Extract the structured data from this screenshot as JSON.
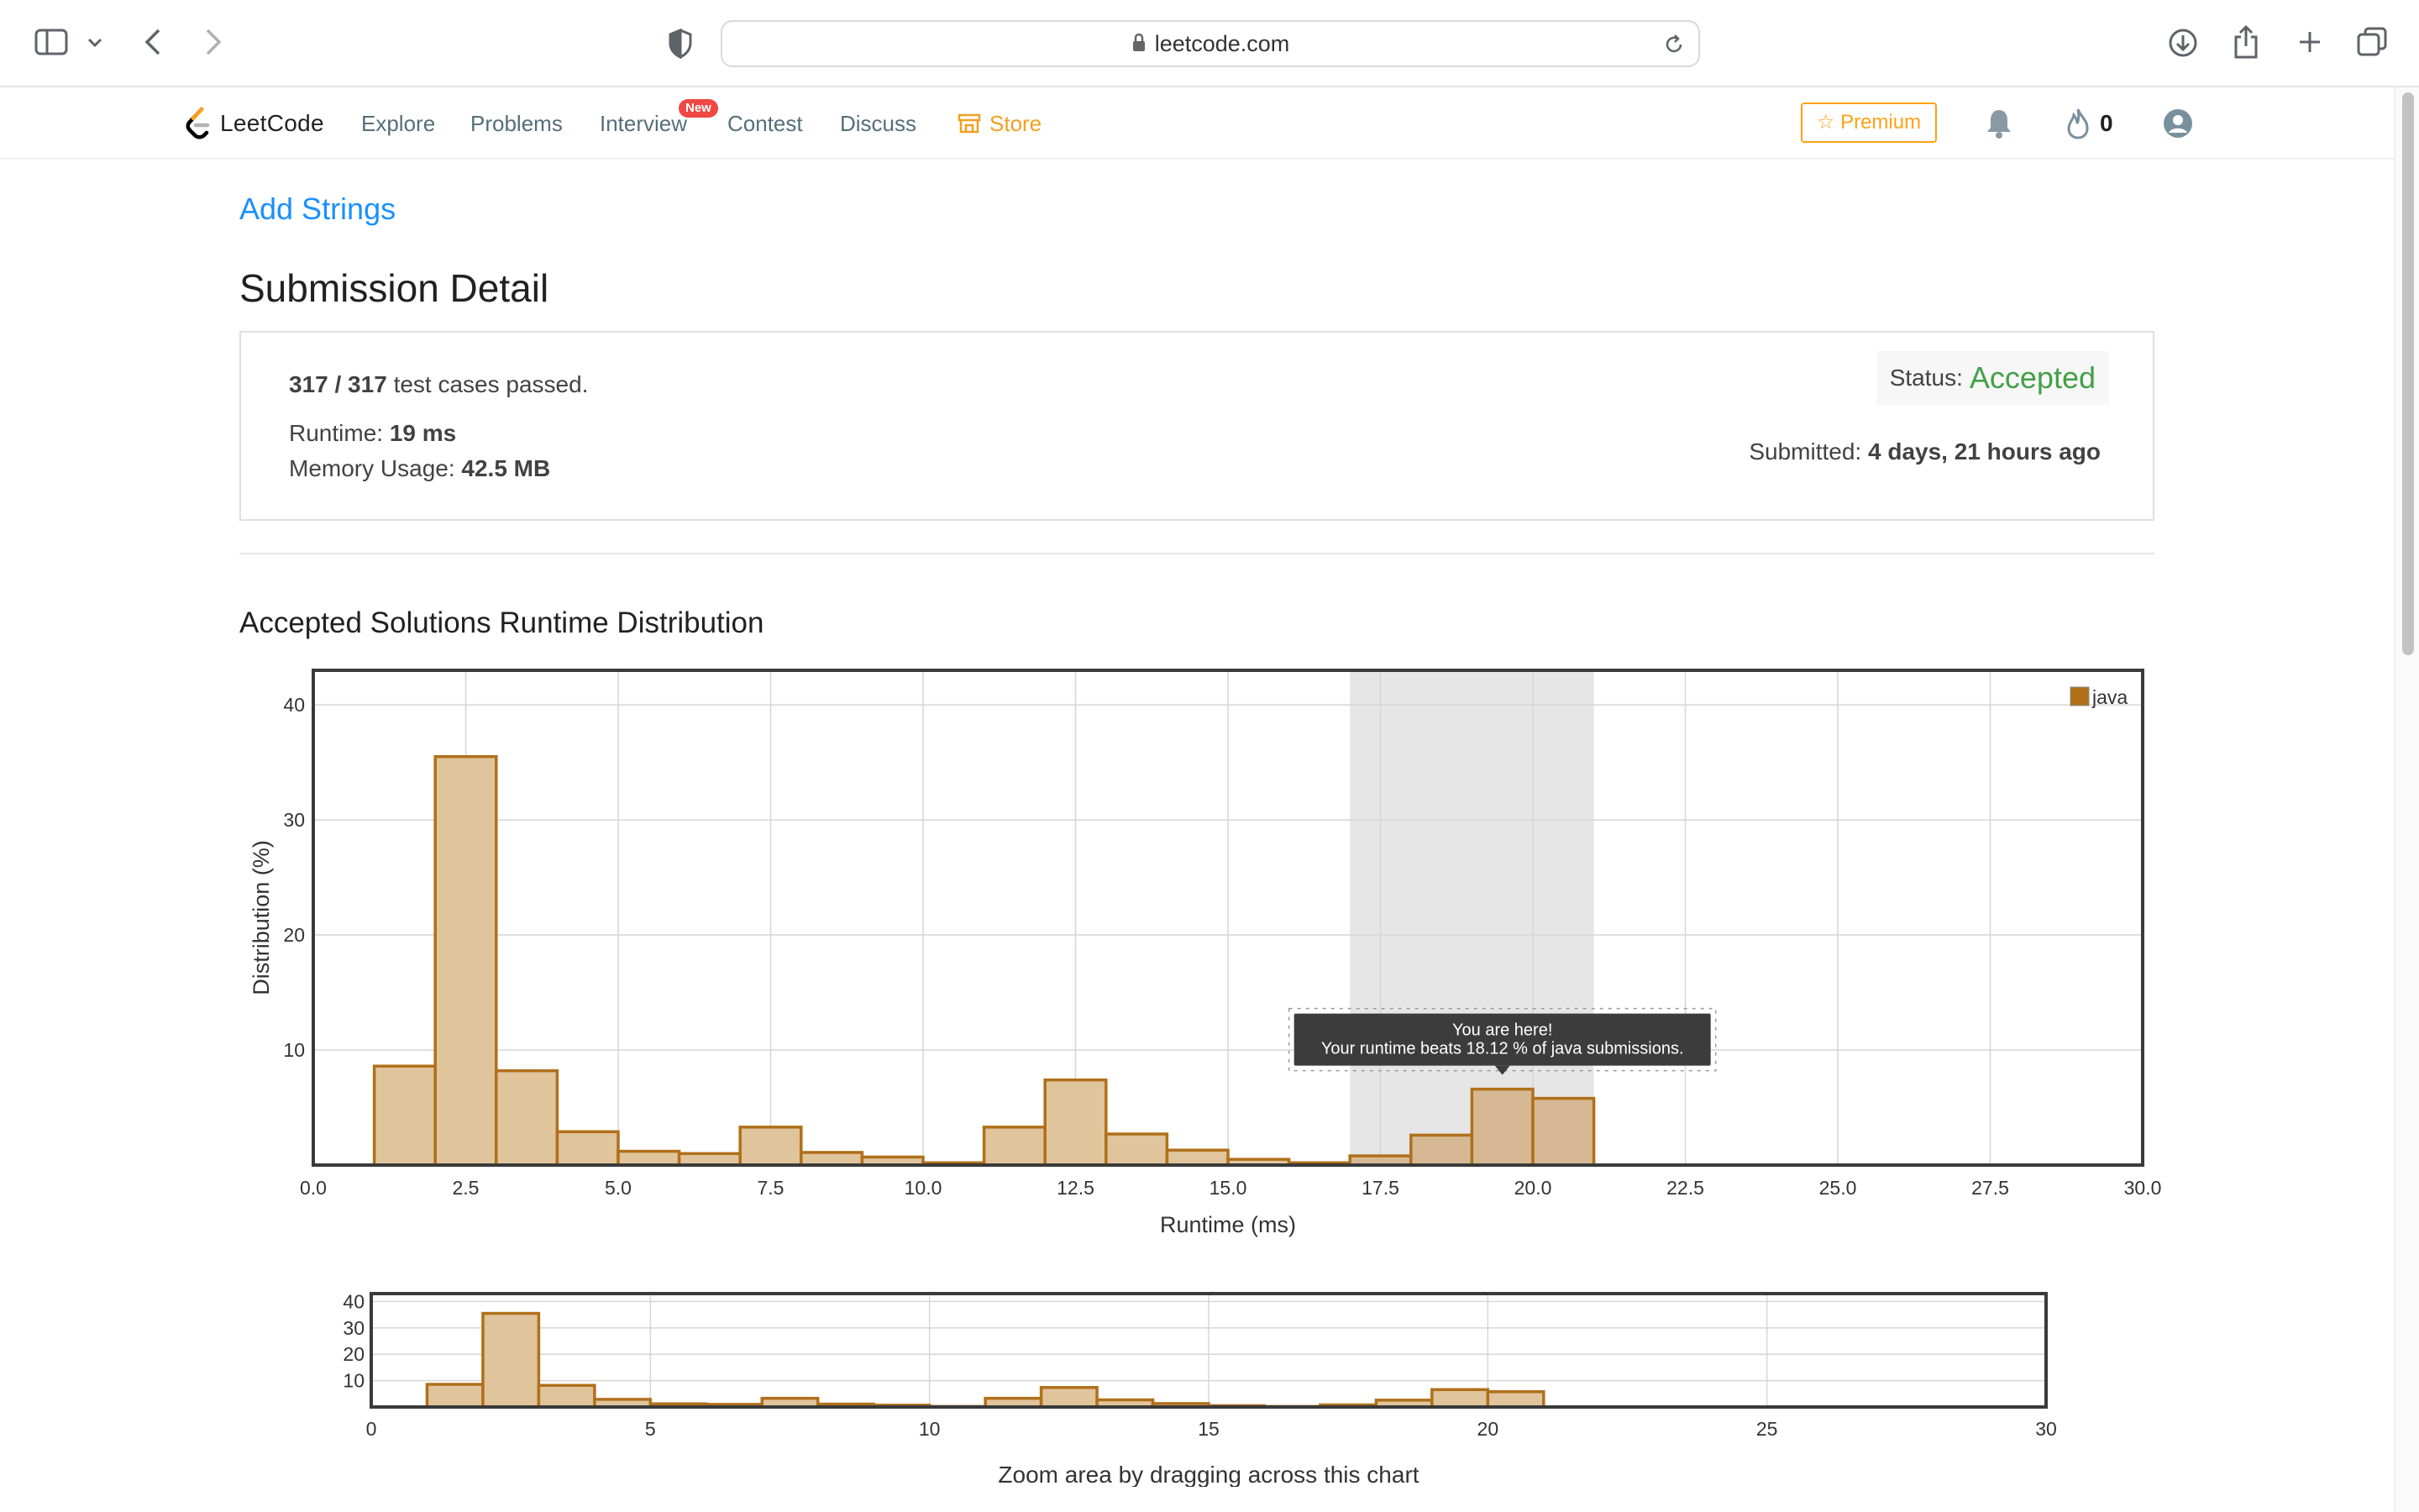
{
  "browser": {
    "url": "leetcode.com"
  },
  "nav": {
    "logo_text": "LeetCode",
    "links": [
      "Explore",
      "Problems",
      "Interview",
      "Contest",
      "Discuss"
    ],
    "new_badge": "New",
    "store_label": "Store",
    "premium_label": "Premium",
    "streak_count": "0",
    "accent_color": "#ffa116"
  },
  "page": {
    "problem_title": "Add Strings",
    "title": "Submission Detail"
  },
  "submission": {
    "passed": "317 / 317",
    "passed_suffix": "test cases passed.",
    "runtime_label": "Runtime:",
    "runtime_value": "19 ms",
    "memory_label": "Memory Usage:",
    "memory_value": "42.5 MB",
    "status_label": "Status:",
    "status_value": "Accepted",
    "submitted_label": "Submitted:",
    "submitted_value": "4 days, 21 hours ago",
    "status_color": "#43a047"
  },
  "chart_heading": "Accepted Solutions Runtime Distribution",
  "chart_data": {
    "type": "bar",
    "title": "",
    "xlabel": "Runtime (ms)",
    "ylabel": "Distribution (%)",
    "xlim": [
      0,
      30
    ],
    "ylim": [
      0,
      43
    ],
    "x_ticks": [
      "0.0",
      "2.5",
      "5.0",
      "7.5",
      "10.0",
      "12.5",
      "15.0",
      "17.5",
      "20.0",
      "22.5",
      "25.0",
      "27.5",
      "30.0"
    ],
    "y_ticks": [
      "10",
      "20",
      "30",
      "40"
    ],
    "grid": true,
    "legend": "top-right",
    "bin_width": 1,
    "series": [
      {
        "name": "java",
        "color": "#b0701a",
        "fill": "#e0c49c",
        "x": [
          1.5,
          2.5,
          3.5,
          4.5,
          5.5,
          6.5,
          7.5,
          8.5,
          9.5,
          10.5,
          11.5,
          12.5,
          13.5,
          14.5,
          15.5,
          16.5,
          17.5,
          18.5,
          19.5,
          20.5
        ],
        "values": [
          8.6,
          35.5,
          8.2,
          2.9,
          1.2,
          1.0,
          3.3,
          1.1,
          0.7,
          0.2,
          3.3,
          7.4,
          2.7,
          1.3,
          0.5,
          0.2,
          0.8,
          2.6,
          6.6,
          5.8
        ]
      }
    ],
    "highlight": {
      "xrange": [
        17,
        21
      ],
      "bar_x": 19.5,
      "tooltip_line1": "You are here!",
      "tooltip_line2": "Your runtime beats 18.12 % of java submissions."
    },
    "navigator": {
      "x_ticks": [
        "0",
        "5",
        "10",
        "15",
        "20",
        "25",
        "30"
      ],
      "y_ticks": [
        "10",
        "20",
        "30",
        "40"
      ],
      "caption": "Zoom area by dragging across this chart"
    }
  }
}
